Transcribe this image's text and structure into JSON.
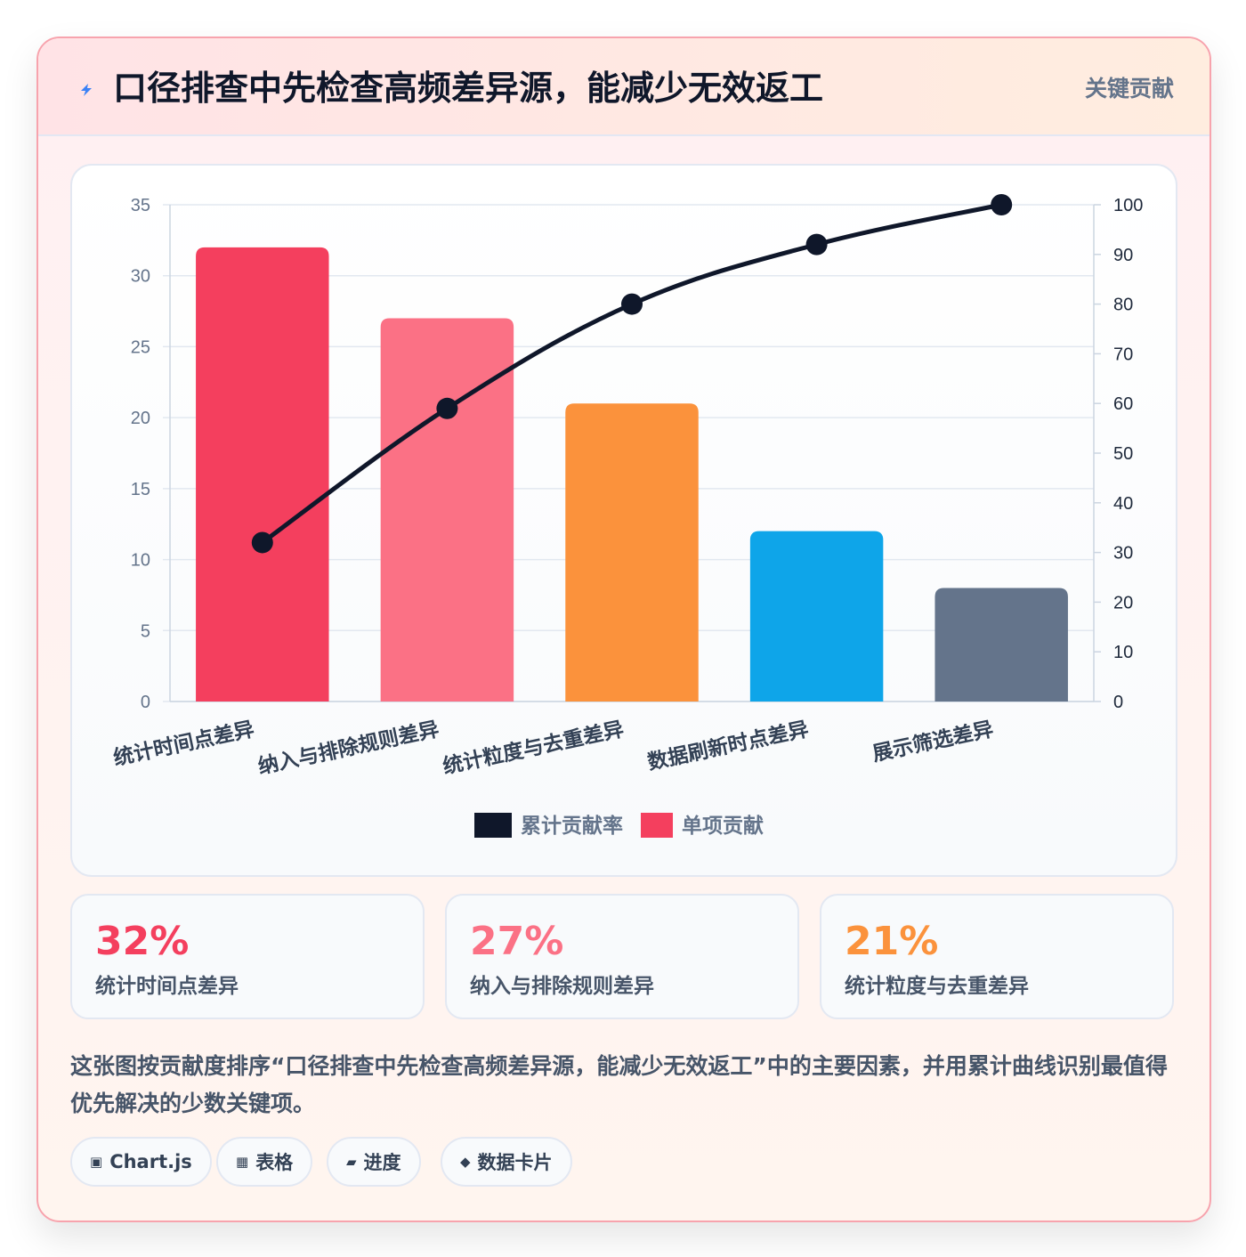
{
  "header": {
    "title": "口径排查中先检查高频差异源，能减少无效返工",
    "tag": "关键贡献"
  },
  "chart_data": {
    "type": "bar",
    "categories": [
      "统计时间点差异",
      "纳入与排除规则差异",
      "统计粒度与去重差异",
      "数据刷新时点差异",
      "展示筛选差异"
    ],
    "series": [
      {
        "name": "单项贡献",
        "type": "bar",
        "axis": "left",
        "values": [
          32,
          27,
          21,
          12,
          8
        ]
      },
      {
        "name": "累计贡献率",
        "type": "line",
        "axis": "right",
        "values": [
          32,
          59,
          80,
          92,
          100
        ]
      }
    ],
    "bar_colors": [
      "#f43f5e",
      "#fb7185",
      "#fb923c",
      "#0ea5e9",
      "#64748b"
    ],
    "line_color": "#0f172a",
    "y_left": {
      "min": 0,
      "max": 35,
      "step": 5,
      "ticks": [
        "0",
        "5",
        "10",
        "15",
        "20",
        "25",
        "30",
        "35"
      ]
    },
    "y_right": {
      "min": 0,
      "max": 100,
      "step": 10,
      "ticks": [
        "0",
        "10",
        "20",
        "30",
        "40",
        "50",
        "60",
        "70",
        "80",
        "90",
        "100"
      ]
    },
    "legend": [
      {
        "label": "累计贡献率",
        "color": "#0f172a"
      },
      {
        "label": "单项贡献",
        "color": "#f43f5e"
      }
    ],
    "legend_position": "bottom",
    "grid": true
  },
  "stats": [
    {
      "value": "32%",
      "label": "统计时间点差异",
      "color": "#f43f5e"
    },
    {
      "value": "27%",
      "label": "纳入与排除规则差异",
      "color": "#fb7185"
    },
    {
      "value": "21%",
      "label": "统计粒度与去重差异",
      "color": "#fb923c"
    }
  ],
  "description": "这张图按贡献度排序“口径排查中先检查高频差异源，能减少无效返工”中的主要因素，并用累计曲线识别最值得优先解决的少数关键项。",
  "tags": [
    {
      "icon": "▣",
      "label": "Chart.js"
    },
    {
      "icon": "▦",
      "label": "表格"
    },
    {
      "icon": "▰",
      "label": "进度"
    },
    {
      "icon": "◆",
      "label": "数据卡片"
    }
  ]
}
